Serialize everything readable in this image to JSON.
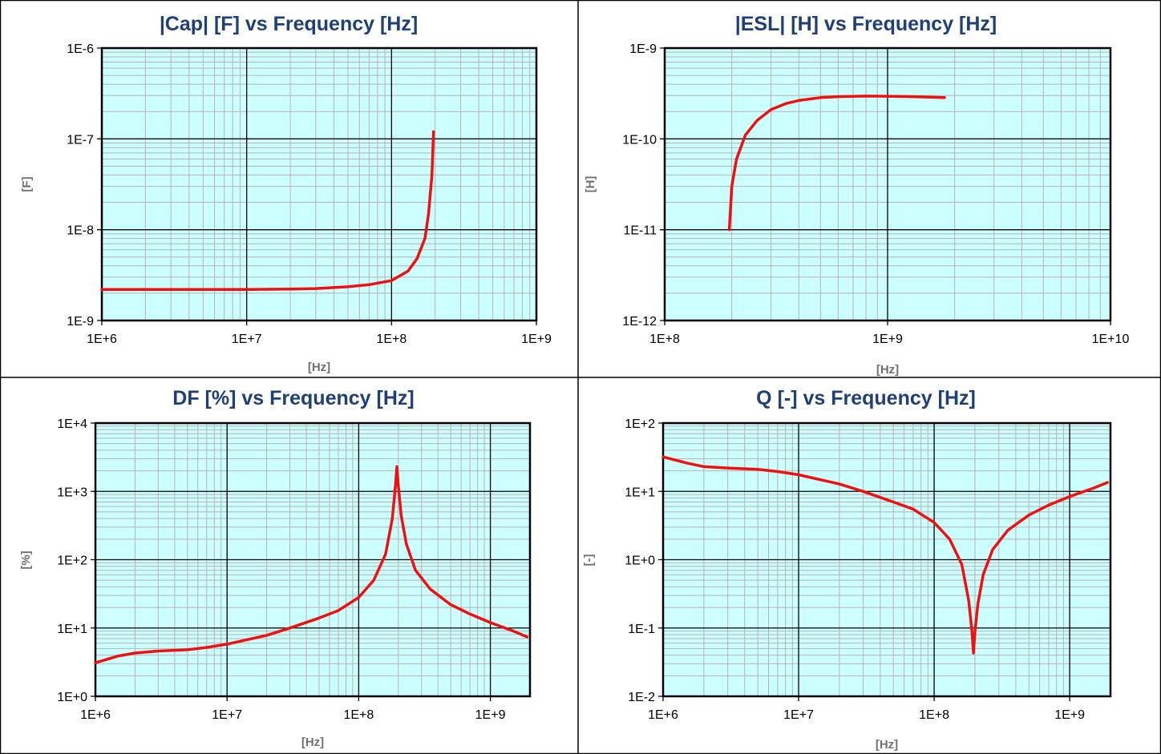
{
  "chart_data": [
    {
      "type": "line",
      "title": "|Cap| [F] vs Frequency [Hz]",
      "xlabel": "[Hz]",
      "ylabel": "[F]",
      "xscale": "log",
      "yscale": "log",
      "xlim": [
        1000000.0,
        1000000000.0
      ],
      "ylim": [
        1e-09,
        1e-06
      ],
      "xticklabels": [
        "1E+6",
        "1E+7",
        "1E+8",
        "1E+9"
      ],
      "yticklabels": [
        "1E-6",
        "1E-7",
        "1E-8",
        "1E-9"
      ],
      "grid": true,
      "line_color": "#ee1111",
      "plot_background": "#ccffff",
      "series": [
        {
          "x": [
            1000000.0,
            5000000.0,
            10000000.0,
            20000000.0,
            30000000.0,
            50000000.0,
            70000000.0,
            100000000.0,
            130000000.0,
            150000000.0,
            170000000.0,
            180000000.0,
            190000000.0,
            195000000.0
          ],
          "y": [
            2.2e-09,
            2.2e-09,
            2.2e-09,
            2.22e-09,
            2.25e-09,
            2.35e-09,
            2.48e-09,
            2.75e-09,
            3.5e-09,
            4.8e-09,
            8e-09,
            1.5e-08,
            4e-08,
            1.2e-07
          ]
        }
      ]
    },
    {
      "type": "line",
      "title": "|ESL| [H] vs Frequency [Hz]",
      "xlabel": "[Hz]",
      "ylabel": "[H]",
      "xscale": "log",
      "yscale": "log",
      "xlim": [
        100000000.0,
        10000000000.0
      ],
      "ylim": [
        1e-12,
        1e-09
      ],
      "xticklabels": [
        "1E+8",
        "1E+9",
        "1E+10"
      ],
      "yticklabels": [
        "1E-9",
        "1E-10",
        "1E-11",
        "1E-12"
      ],
      "grid": true,
      "line_color": "#ee1111",
      "plot_background": "#ccffff",
      "series": [
        {
          "x": [
            195000000.0,
            200000000.0,
            210000000.0,
            230000000.0,
            260000000.0,
            300000000.0,
            350000000.0,
            400000000.0,
            500000000.0,
            600000000.0,
            800000000.0,
            1000000000.0,
            1300000000.0,
            1800000000.0
          ],
          "y": [
            1e-11,
            3e-11,
            6e-11,
            1.1e-10,
            1.6e-10,
            2.1e-10,
            2.45e-10,
            2.65e-10,
            2.85e-10,
            2.92e-10,
            2.96e-10,
            2.95e-10,
            2.92e-10,
            2.85e-10
          ]
        }
      ]
    },
    {
      "type": "line",
      "title": "DF [%] vs Frequency [Hz]",
      "xlabel": "[Hz]",
      "ylabel": "[%]",
      "xscale": "log",
      "yscale": "log",
      "xlim": [
        1000000.0,
        2000000000.0
      ],
      "ylim": [
        1,
        10000.0
      ],
      "xticklabels": [
        "1E+6",
        "1E+7",
        "1E+8",
        "1E+9"
      ],
      "yticklabels": [
        "1E+4",
        "1E+3",
        "1E+2",
        "1E+1",
        "1E+0"
      ],
      "grid": true,
      "line_color": "#ee1111",
      "plot_background": "#ccffff",
      "series": [
        {
          "x": [
            1000000.0,
            1500000.0,
            2000000.0,
            3000000.0,
            5000000.0,
            7000000.0,
            10000000.0,
            20000000.0,
            30000000.0,
            50000000.0,
            70000000.0,
            100000000.0,
            130000000.0,
            160000000.0,
            180000000.0,
            190000000.0,
            195000000.0,
            200000000.0,
            210000000.0,
            230000000.0,
            270000000.0,
            350000000.0,
            500000000.0,
            700000000.0,
            1000000000.0,
            1500000000.0,
            1900000000.0
          ],
          "y": [
            3.1,
            3.9,
            4.3,
            4.6,
            4.8,
            5.2,
            5.8,
            7.8,
            10,
            14,
            18,
            28,
            50,
            120,
            400,
            1200,
            2300,
            1200,
            450,
            170,
            70,
            37,
            22,
            16,
            12,
            9,
            7.4
          ]
        }
      ]
    },
    {
      "type": "line",
      "title": "Q [-] vs Frequency [Hz]",
      "xlabel": "[Hz]",
      "ylabel": "[-]",
      "xscale": "log",
      "yscale": "log",
      "xlim": [
        1000000.0,
        2000000000.0
      ],
      "ylim": [
        0.01,
        100
      ],
      "xticklabels": [
        "1E+6",
        "1E+7",
        "1E+8",
        "1E+9"
      ],
      "yticklabels": [
        "1E+2",
        "1E+1",
        "1E+0",
        "1E-1",
        "1E-2"
      ],
      "grid": true,
      "line_color": "#ee1111",
      "plot_background": "#ccffff",
      "series": [
        {
          "x": [
            1000000.0,
            1500000.0,
            2000000.0,
            3000000.0,
            5000000.0,
            7000000.0,
            10000000.0,
            20000000.0,
            30000000.0,
            50000000.0,
            70000000.0,
            100000000.0,
            130000000.0,
            160000000.0,
            180000000.0,
            190000000.0,
            195000000.0,
            200000000.0,
            210000000.0,
            230000000.0,
            270000000.0,
            350000000.0,
            500000000.0,
            700000000.0,
            1000000000.0,
            1500000000.0,
            1900000000.0
          ],
          "y": [
            32,
            26,
            23,
            22,
            21,
            19.5,
            17.5,
            12.8,
            10,
            7,
            5.5,
            3.5,
            2,
            0.85,
            0.25,
            0.09,
            0.043,
            0.09,
            0.22,
            0.6,
            1.4,
            2.7,
            4.5,
            6.3,
            8.4,
            11.2,
            13.5
          ]
        }
      ]
    }
  ]
}
